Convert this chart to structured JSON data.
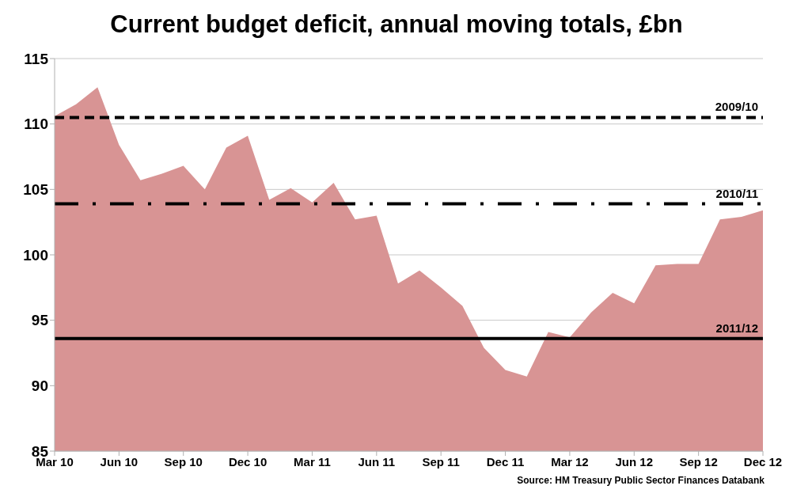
{
  "chart_data": {
    "type": "area",
    "title": "Current budget deficit, annual moving totals, £bn",
    "categories": [
      "Mar 10",
      null,
      null,
      "Jun 10",
      null,
      null,
      "Sep 10",
      null,
      null,
      "Dec 10",
      null,
      null,
      "Mar 11",
      null,
      null,
      "Jun 11",
      null,
      null,
      "Sep 11",
      null,
      null,
      "Dec 11",
      null,
      null,
      "Mar 12",
      null,
      null,
      "Jun 12",
      null,
      null,
      "Sep 12",
      null,
      null,
      "Dec 12"
    ],
    "series": [
      {
        "color": "#d89494",
        "values": [
          110.6,
          111.5,
          112.8,
          108.4,
          105.7,
          106.2,
          106.8,
          105.0,
          108.2,
          109.1,
          104.2,
          105.1,
          104.0,
          105.5,
          102.7,
          103.0,
          97.8,
          98.8,
          97.5,
          96.1,
          92.9,
          91.2,
          90.7,
          94.1,
          93.7,
          95.6,
          97.1,
          96.3,
          99.2,
          99.3,
          99.3,
          102.7,
          102.9,
          103.4
        ]
      }
    ],
    "ylim": [
      85,
      115
    ],
    "yticks": [
      85,
      90,
      95,
      100,
      105,
      110,
      115
    ],
    "grid": "y",
    "legend": false,
    "ref_lines": [
      {
        "axis": "y",
        "value": 110.5,
        "line_style": "dashed",
        "color": "#000000"
      },
      {
        "axis": "y",
        "value": 103.9,
        "line_style": "dash-dot",
        "color": "#000000"
      },
      {
        "axis": "y",
        "value": 93.6,
        "line_style": "solid",
        "color": "#000000"
      }
    ],
    "annotations": [
      {
        "text": "2009/10",
        "x": "Dec 12",
        "y": 110.5
      },
      {
        "text": "2010/11",
        "x": "Dec 12",
        "y": 103.9
      },
      {
        "text": "2011/12",
        "x": "Dec 12",
        "y": 93.6
      },
      "Source: HM Treasury Public Sector Finances Databank"
    ]
  }
}
